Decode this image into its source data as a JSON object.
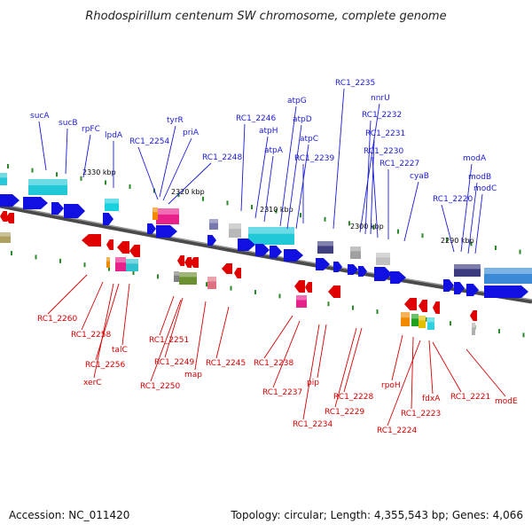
{
  "title": "Rhodospirillum centenum SW chromosome, complete genome",
  "footer": {
    "accession": "Accession: NC_011420",
    "summary": "Topology: circular; Length: 4,355,543 bp; Genes: 4,066"
  },
  "colors": {
    "forward_label": "#1a1ad6",
    "reverse_label": "#d40000",
    "forward_arrow": "#1010e0",
    "reverse_arrow": "#e00000",
    "backbone": "#555555",
    "tick": "#2a8a2a"
  },
  "scale_labels": [
    "2330 kbp",
    "2320 kbp",
    "2310 kbp",
    "2300 kbp",
    "2290 kbp"
  ],
  "forward_genes": [
    "sucA",
    "sucB",
    "rpFC",
    "lpdA",
    "RC1_2254",
    "tyrR",
    "priA",
    "RC1_2248",
    "RC1_2246",
    "atpH",
    "atpA",
    "atpG",
    "atpD",
    "atpC",
    "RC1_2239",
    "RC1_2235",
    "nnrU",
    "RC1_2232",
    "RC1_2231",
    "RC1_2230",
    "RC1_2227",
    "cyaB",
    "RC1_2220",
    "modA",
    "modB",
    "modC"
  ],
  "reverse_genes": [
    "RC1_2260",
    "RC1_2258",
    "talC",
    "RC1_2256",
    "xerC",
    "RC1_2251",
    "RC1_2249",
    "RC1_2250",
    "map",
    "RC1_2245",
    "RC1_2238",
    "RC1_2237",
    "pip",
    "RC1_2234",
    "RC1_2228",
    "RC1_2229",
    "rpoH",
    "RC1_2223",
    "RC1_2224",
    "fdxA",
    "RC1_2221",
    "modE"
  ]
}
